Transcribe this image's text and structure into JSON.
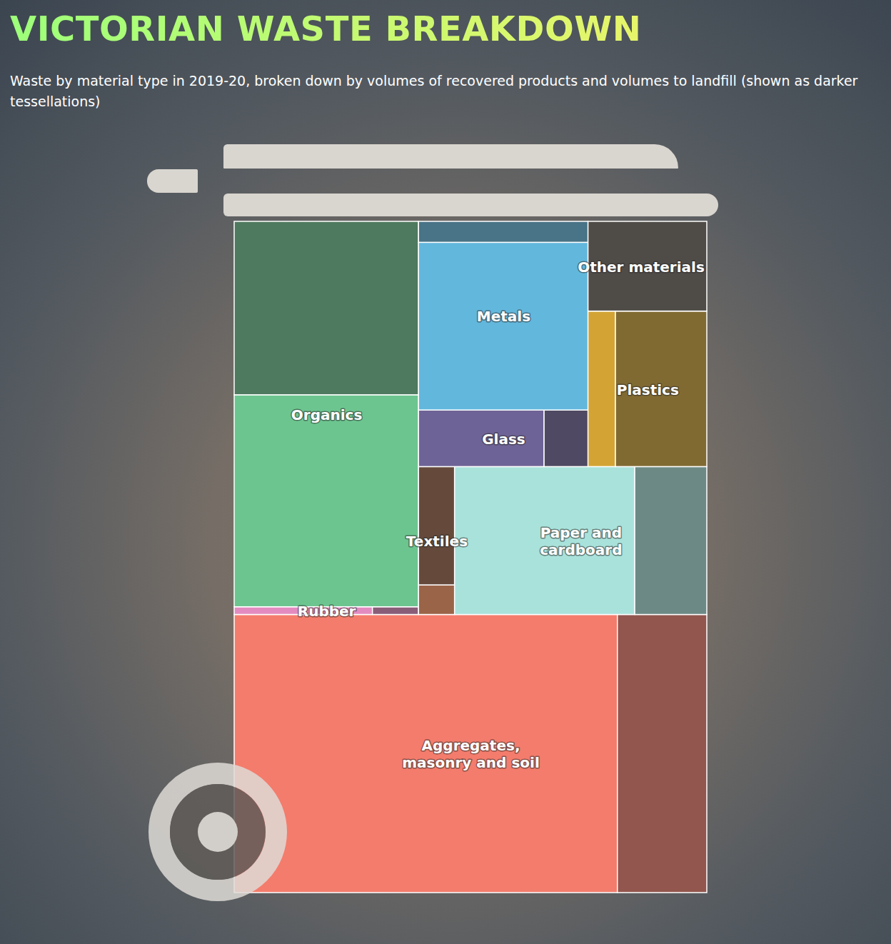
{
  "chart_data": {
    "type": "voronoi_treemap",
    "title": "VICTORIAN WASTE BREAKDOWN",
    "subtitle": "Waste by material type in 2019-20, broken down by volumes of recovered products and volumes to landfill (shown as darker tessellations)",
    "categories": [
      "Aggregates, masonry and soil",
      "Rubber",
      "Organics",
      "Textiles",
      "Paper and cardboard",
      "Glass",
      "Metals",
      "Plastics",
      "Other materials"
    ],
    "recovered": [
      30,
      0.3,
      11,
      0.3,
      7.5,
      2,
      8,
      1.2,
      0
    ],
    "landfill": [
      7,
      0.1,
      9,
      1.2,
      3,
      0.7,
      1,
      4,
      3
    ],
    "colors": [
      "#f47c6c",
      "#e38bc0",
      "#6cc58f",
      "#9a6448",
      "#a9e2da",
      "#6e6396",
      "#62b7dc",
      "#d3a434",
      "#6f675f"
    ],
    "data_labels": false,
    "tick_labels": false
  }
}
